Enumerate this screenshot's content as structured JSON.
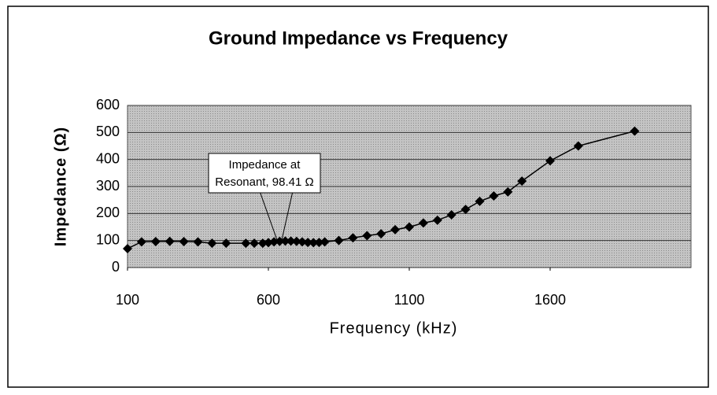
{
  "chart_data": {
    "type": "line",
    "title": "Ground Impedance  vs  Frequency",
    "x_label": "Frequency (kHz)",
    "y_label": "Impedance (Ω)",
    "annotation": [
      "Impedance at",
      "Resonant, 98.41 Ω"
    ],
    "x": [
      100,
      150,
      200,
      250,
      300,
      350,
      400,
      450,
      520,
      550,
      580,
      600,
      620,
      640,
      660,
      680,
      700,
      720,
      740,
      760,
      780,
      800,
      850,
      900,
      950,
      1000,
      1050,
      1100,
      1150,
      1200,
      1250,
      1300,
      1350,
      1400,
      1450,
      1500,
      1600,
      1700,
      1900
    ],
    "series": [
      {
        "name": "Impedance",
        "color": "#000000",
        "values": [
          70,
          95,
          96,
          97,
          96,
          95,
          90,
          90,
          90,
          90,
          90,
          92,
          95,
          97,
          98,
          98,
          97,
          95,
          93,
          92,
          93,
          95,
          100,
          110,
          118,
          125,
          140,
          150,
          165,
          175,
          195,
          215,
          245,
          265,
          280,
          320,
          395,
          450,
          505
        ]
      }
    ],
    "xlim": [
      100,
      2100
    ],
    "xticks": [
      100,
      600,
      1100,
      1600
    ],
    "ylim": [
      0,
      600
    ],
    "yticks": [
      0,
      100,
      200,
      300,
      400,
      500,
      600
    ],
    "grid": true
  }
}
